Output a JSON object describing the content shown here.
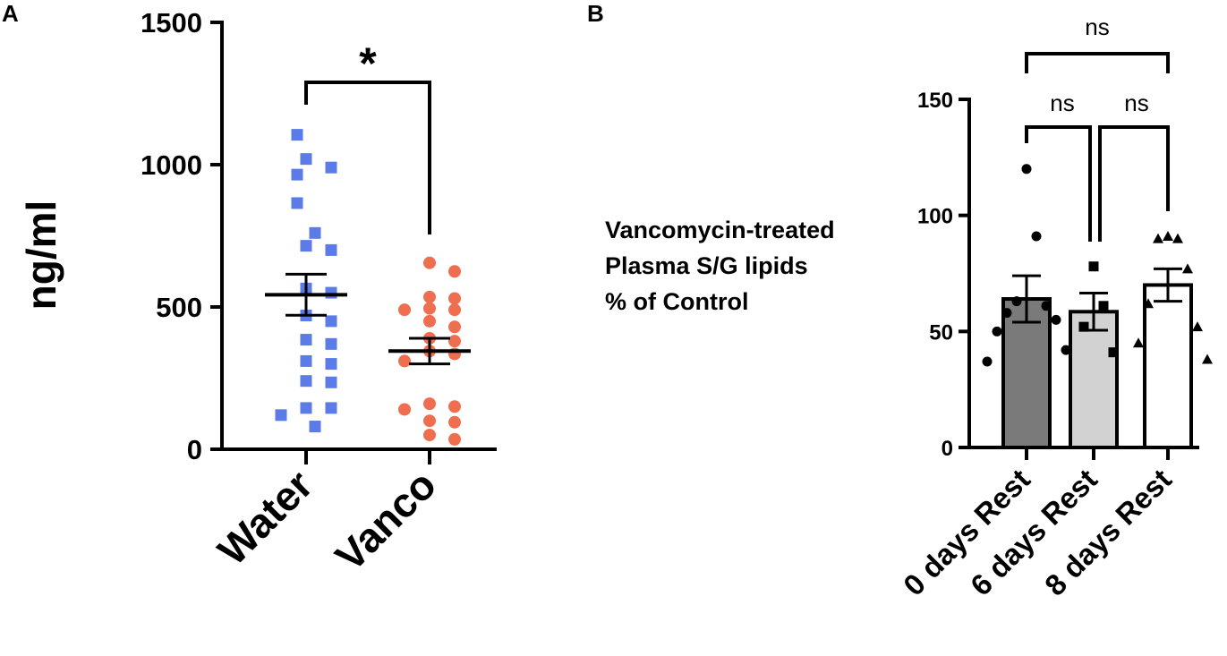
{
  "panels": {
    "a": "A",
    "b": "B"
  },
  "colors": {
    "water": "#5b7be6",
    "vanco": "#ef6e4f",
    "bar0": "#7a7a7a",
    "bar6": "#d2d2d2",
    "bar8": "#ffffff",
    "ink": "#000000"
  },
  "chart_data": [
    {
      "id": "A",
      "type": "scatter",
      "title": "",
      "ylabel": "ng/ml",
      "xlabel": "",
      "ylim": [
        0,
        1500
      ],
      "yticks": [
        "0",
        "500",
        "1000",
        "1500"
      ],
      "categories": [
        "Water",
        "Vanco"
      ],
      "series": [
        {
          "name": "Water",
          "marker": "square",
          "mean": 543,
          "sem": 72,
          "values": [
            1105,
            1020,
            965,
            990,
            865,
            760,
            715,
            700,
            565,
            550,
            470,
            450,
            385,
            370,
            310,
            300,
            235,
            240,
            145,
            145,
            120,
            80
          ]
        },
        {
          "name": "Vanco",
          "marker": "circle",
          "mean": 345,
          "sem": 45,
          "values": [
            655,
            625,
            535,
            530,
            495,
            490,
            490,
            450,
            430,
            390,
            380,
            345,
            335,
            310,
            160,
            150,
            140,
            100,
            95,
            50,
            35
          ]
        }
      ],
      "annotations": [
        {
          "pair": [
            "Water",
            "Vanco"
          ],
          "label": "*"
        }
      ]
    },
    {
      "id": "B",
      "type": "bar",
      "title": "",
      "ylabel_lines": [
        "Vancomycin-treated",
        "Plasma S/G lipids",
        "% of Control"
      ],
      "xlabel": "",
      "ylim": [
        0,
        150
      ],
      "yticks": [
        "0",
        "50",
        "100",
        "150"
      ],
      "categories": [
        "0 days Rest",
        "6 days Rest",
        "8 days Rest"
      ],
      "series": [
        {
          "name": "0 days Rest",
          "marker": "circle",
          "mean": 64,
          "sem": 10,
          "points": [
            120,
            91,
            63,
            61,
            58,
            55,
            50,
            42,
            37
          ]
        },
        {
          "name": "6 days Rest",
          "marker": "square",
          "mean": 58.5,
          "sem": 8,
          "points": [
            78,
            61,
            52,
            41
          ]
        },
        {
          "name": "8 days Rest",
          "marker": "triangle",
          "mean": 70,
          "sem": 7,
          "points": [
            91,
            90,
            90,
            77,
            62,
            52,
            45,
            38
          ]
        }
      ],
      "annotations": [
        {
          "pair": [
            "0 days Rest",
            "8 days Rest"
          ],
          "label": "ns"
        },
        {
          "pair": [
            "0 days Rest",
            "6 days Rest"
          ],
          "label": "ns"
        },
        {
          "pair": [
            "6 days Rest",
            "8 days Rest"
          ],
          "label": "ns"
        }
      ]
    }
  ]
}
